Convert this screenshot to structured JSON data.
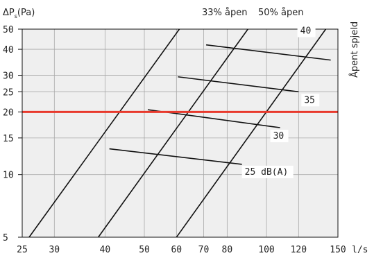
{
  "chart_data": {
    "type": "line",
    "ylabel_main": "ΔP",
    "ylabel_sub": "s",
    "ylabel_unit": "(Pa)",
    "xlabel": "l/s",
    "right_label": "Åpent spjeld",
    "header_labels": [
      "33% åpen",
      "50% åpen"
    ],
    "xscale": "log",
    "yscale": "log",
    "xlim": [
      25,
      150
    ],
    "ylim": [
      5,
      50
    ],
    "x_ticks": [
      25,
      30,
      40,
      50,
      60,
      70,
      80,
      100,
      120,
      150
    ],
    "y_ticks": [
      5,
      10,
      15,
      20,
      25,
      30,
      40,
      50
    ],
    "grid": true,
    "damper_lines": [
      {
        "x": [
          26,
          61
        ]
      },
      {
        "x": [
          38.5,
          90
        ]
      },
      {
        "x": [
          60,
          140
        ]
      }
    ],
    "sound_lines": [
      {
        "label": "25 dB(A)",
        "points": [
          [
            41,
            13.3
          ],
          [
            87,
            11.2
          ]
        ]
      },
      {
        "label": "30",
        "points": [
          [
            51,
            20.5
          ],
          [
            108,
            16.8
          ]
        ]
      },
      {
        "label": "35",
        "points": [
          [
            60.5,
            29.5
          ],
          [
            120,
            25
          ]
        ]
      },
      {
        "label": "40",
        "points": [
          [
            71,
            42
          ],
          [
            144,
            35.5
          ]
        ]
      }
    ],
    "reference_line": {
      "y": 20,
      "color": "#e8392c"
    }
  }
}
